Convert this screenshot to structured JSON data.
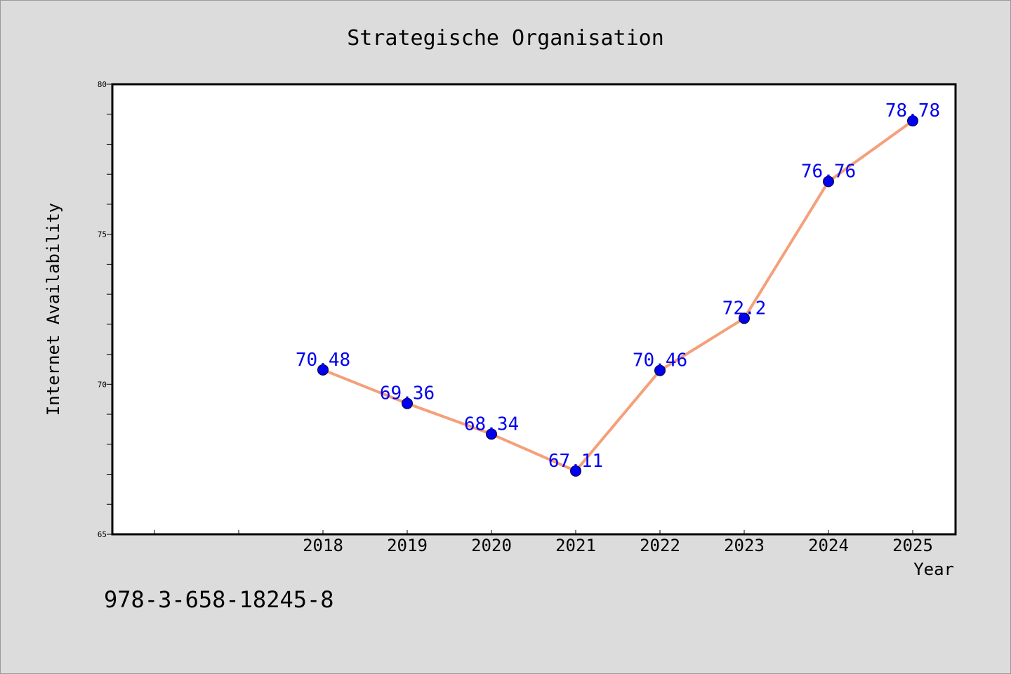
{
  "chart_data": {
    "type": "line",
    "title": "Strategische Organisation",
    "xlabel": "Year",
    "ylabel": "Internet Availability",
    "categories": [
      "2018",
      "2019",
      "2020",
      "2021",
      "2022",
      "2023",
      "2024",
      "2025"
    ],
    "series": [
      {
        "values": [
          70.48,
          69.36,
          68.34,
          67.11,
          70.46,
          72.2,
          76.76,
          78.78
        ],
        "labels": [
          "70.48",
          "69.36",
          "68.34",
          "67.11",
          "70.46",
          "72.2",
          "76.76",
          "78.78"
        ],
        "line_color": "#f4a07a",
        "marker_color": "#0000ee"
      }
    ],
    "ylim": [
      65,
      80
    ],
    "yticks": [
      "65",
      "70",
      "75",
      "80"
    ],
    "grid": false,
    "legend": "none",
    "label_color": "#0000ee"
  },
  "footnote": "978-3-658-18245-8",
  "colors": {
    "background": "#dcdcdc",
    "plot_background": "#ffffff"
  }
}
